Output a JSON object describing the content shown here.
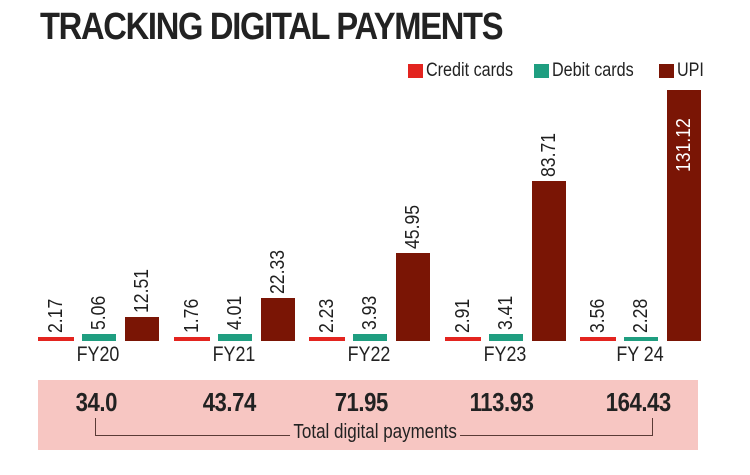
{
  "title": "TRACKING DIGITAL PAYMENTS",
  "legend": [
    {
      "label": "Credit cards",
      "color": "#e3241f"
    },
    {
      "label": "Debit cards",
      "color": "#1f9e80"
    },
    {
      "label": "UPI",
      "color": "#7a1505"
    }
  ],
  "totals": {
    "label": "Total digital payments",
    "values": [
      "34.0",
      "43.74",
      "71.95",
      "113.93",
      "164.43"
    ],
    "background": "#f7c6c2"
  },
  "chart_data": {
    "type": "bar",
    "title": "TRACKING DIGITAL PAYMENTS",
    "xlabel": "",
    "ylabel": "",
    "categories": [
      "FY20",
      "FY21",
      "FY22",
      "FY23",
      "FY 24"
    ],
    "series": [
      {
        "name": "Credit cards",
        "color": "#e3241f",
        "values": [
          2.17,
          1.76,
          2.23,
          2.91,
          3.56
        ]
      },
      {
        "name": "Debit cards",
        "color": "#1f9e80",
        "values": [
          5.06,
          4.01,
          3.93,
          3.41,
          2.28
        ]
      },
      {
        "name": "UPI",
        "color": "#7a1505",
        "values": [
          12.51,
          22.33,
          45.95,
          83.71,
          131.12
        ]
      }
    ],
    "value_labels": [
      [
        "2.17",
        "1.76",
        "2.23",
        "2.91",
        "3.56"
      ],
      [
        "5.06",
        "4.01",
        "3.93",
        "3.41",
        "2.28"
      ],
      [
        "12.51",
        "22.33",
        "45.95",
        "83.71",
        "131.12"
      ]
    ],
    "totals": {
      "label": "Total digital payments",
      "values": [
        34.0,
        43.74,
        71.95,
        113.93,
        164.43
      ]
    },
    "legend_position": "top-right",
    "grid": false,
    "ylim": [
      0,
      135
    ]
  }
}
